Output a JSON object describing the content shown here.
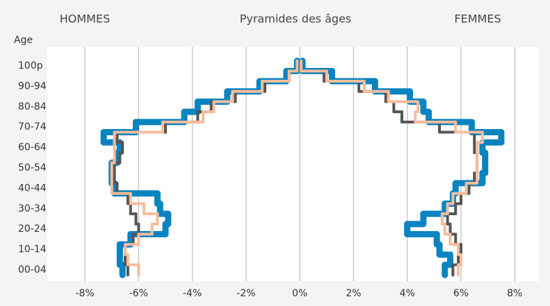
{
  "chart_data": {
    "type": "pyramid",
    "title": "Pyramides des âges",
    "left_label": "HOMMES",
    "right_label": "FEMMES",
    "y_axis_label": "Age",
    "categories": [
      "00-04",
      null,
      "10-14",
      null,
      "20-24",
      null,
      "30-34",
      null,
      "40-44",
      null,
      "50-54",
      null,
      "60-64",
      null,
      "70-74",
      null,
      "80-84",
      null,
      "90-94",
      null,
      "100p"
    ],
    "series": [
      {
        "color": "#0a84c1",
        "width": 9,
        "men": [
          -6.6,
          -6.7,
          -6.7,
          -6.3,
          -5.0,
          -4.9,
          -5.2,
          -5.3,
          -6.9,
          -7.0,
          -7.0,
          -6.8,
          -6.7,
          -7.3,
          -6.1,
          -4.3,
          -3.8,
          -2.7,
          -1.5,
          -0.5,
          -0.1
        ],
        "women": [
          5.4,
          5.6,
          5.2,
          5.1,
          4.0,
          4.6,
          5.4,
          5.7,
          5.8,
          6.8,
          6.9,
          6.9,
          6.8,
          7.5,
          6.4,
          4.8,
          4.6,
          4.1,
          2.8,
          1.2,
          0.1
        ]
      },
      {
        "color": "#555555",
        "width": 4,
        "men": [
          -6.4,
          -6.5,
          -6.5,
          -6.2,
          -6.0,
          -6.1,
          -6.3,
          -6.4,
          -6.8,
          -6.9,
          -6.9,
          -6.7,
          -6.6,
          -6.8,
          -5.0,
          -3.8,
          -3.3,
          -2.4,
          -1.3,
          -0.4,
          -0.1
        ],
        "women": [
          5.7,
          5.9,
          6.0,
          5.8,
          5.6,
          5.5,
          5.8,
          6.0,
          6.3,
          6.5,
          6.6,
          6.6,
          6.5,
          6.5,
          5.2,
          3.8,
          3.5,
          3.2,
          2.2,
          0.9,
          0.05
        ]
      },
      {
        "color": "#f6bd9c",
        "width": 4,
        "men": [
          -6.0,
          -6.4,
          -6.5,
          -6.0,
          -5.5,
          -5.3,
          -5.8,
          -6.3,
          -7.0,
          -7.0,
          -7.0,
          -6.9,
          -6.9,
          -6.9,
          -5.1,
          -3.6,
          -3.2,
          -2.5,
          -1.4,
          -0.4,
          -0.1
        ],
        "women": [
          5.9,
          6.0,
          5.9,
          5.6,
          5.4,
          5.3,
          5.5,
          5.7,
          6.2,
          6.6,
          6.6,
          6.6,
          6.6,
          6.8,
          5.8,
          4.3,
          4.4,
          3.3,
          2.4,
          1.0,
          0.05
        ]
      }
    ],
    "xlim": [
      -9.4,
      8.9
    ],
    "xticks": [
      {
        "value": -8,
        "label": "-8%"
      },
      {
        "value": -6,
        "label": "-6%"
      },
      {
        "value": -4,
        "label": "-4%"
      },
      {
        "value": -2,
        "label": "-2%"
      },
      {
        "value": 0,
        "label": "0%"
      },
      {
        "value": 2,
        "label": "2%"
      },
      {
        "value": 4,
        "label": "4%"
      },
      {
        "value": 6,
        "label": "6%"
      },
      {
        "value": 8,
        "label": "8%"
      }
    ],
    "grid": true
  }
}
